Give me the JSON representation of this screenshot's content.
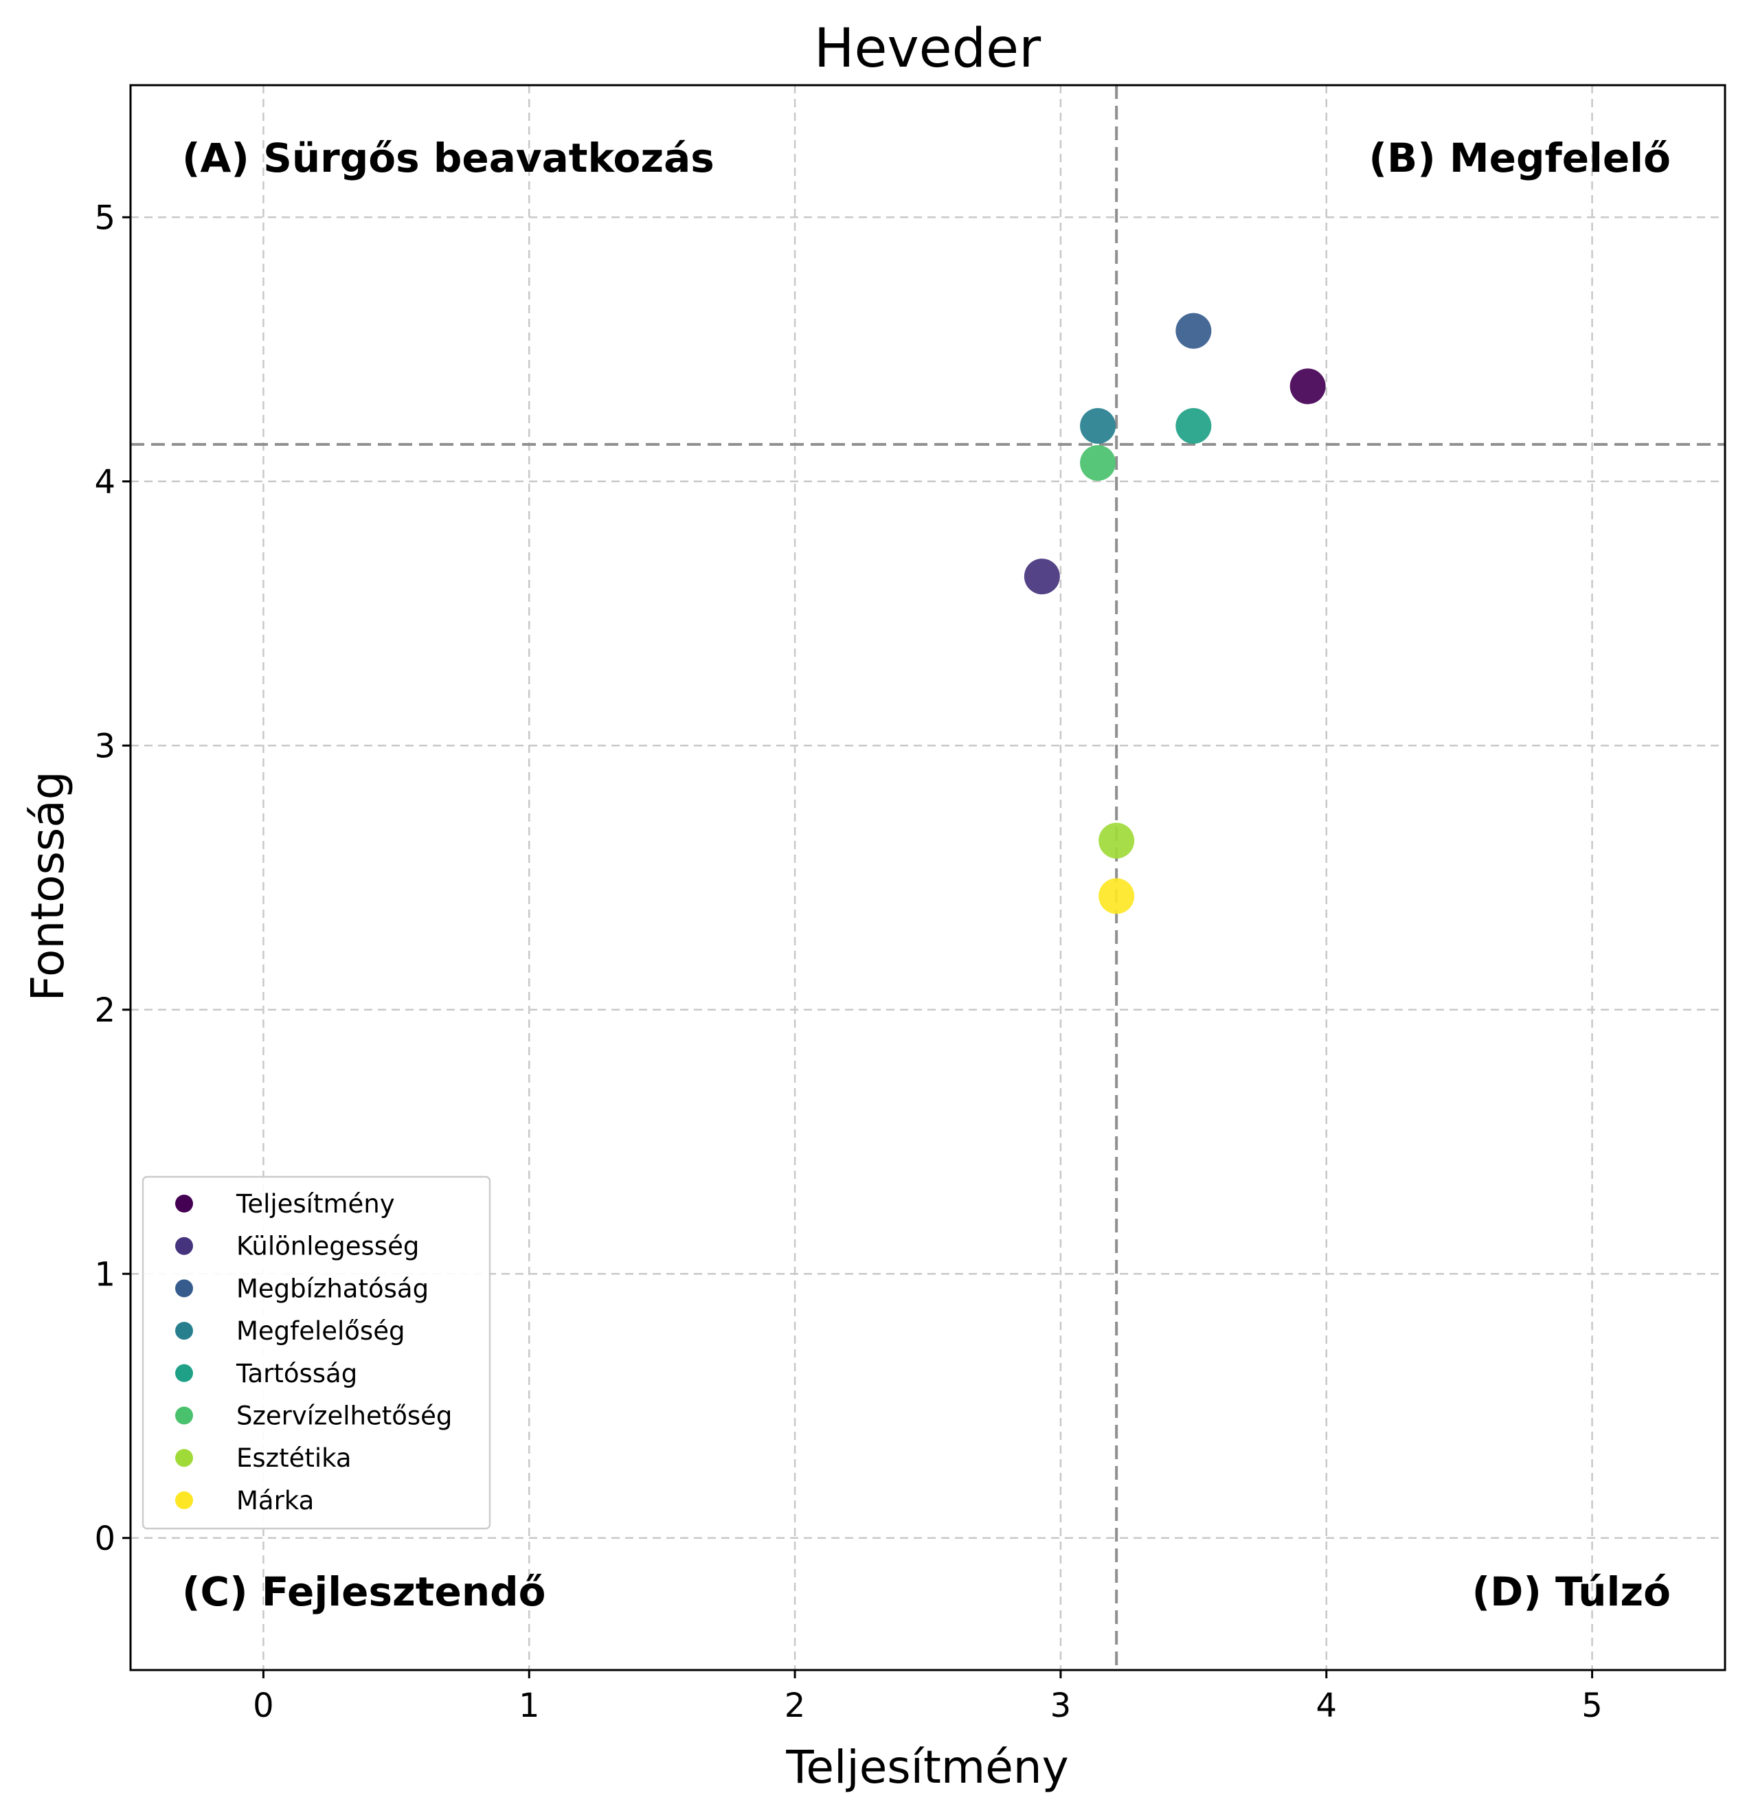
{
  "chart_data": {
    "type": "scatter",
    "title": "Heveder",
    "xlabel": "Teljesítmény",
    "ylabel": "Fontosság",
    "xlim": [
      -0.5,
      5.5
    ],
    "ylim": [
      -0.5,
      5.5
    ],
    "xticks": [
      0,
      1,
      2,
      3,
      4,
      5
    ],
    "yticks": [
      0,
      1,
      2,
      3,
      4,
      5
    ],
    "grid": true,
    "reference_lines": {
      "x": 3.21,
      "y": 4.14
    },
    "quadrant_labels": {
      "A": "(A) Sürgős beavatkozás",
      "B": "(B) Megfelelő",
      "C": "(C) Fejlesztendő",
      "D": "(D) Túlzó"
    },
    "legend_position": "lower-left",
    "series": [
      {
        "name": "Teljesítmény",
        "x": 3.93,
        "y": 4.36,
        "color": "#440154"
      },
      {
        "name": "Különlegesség",
        "x": 2.93,
        "y": 3.64,
        "color": "#46337e"
      },
      {
        "name": "Megbízhatóság",
        "x": 3.5,
        "y": 4.57,
        "color": "#365c8d"
      },
      {
        "name": "Megfelelőség",
        "x": 3.14,
        "y": 4.21,
        "color": "#277f8e"
      },
      {
        "name": "Tartósság",
        "x": 3.5,
        "y": 4.21,
        "color": "#1fa187"
      },
      {
        "name": "Szervízelhetőség",
        "x": 3.14,
        "y": 4.07,
        "color": "#4ac16d"
      },
      {
        "name": "Esztétika",
        "x": 3.21,
        "y": 2.64,
        "color": "#a0da39"
      },
      {
        "name": "Márka",
        "x": 3.21,
        "y": 2.43,
        "color": "#fde725"
      }
    ]
  }
}
